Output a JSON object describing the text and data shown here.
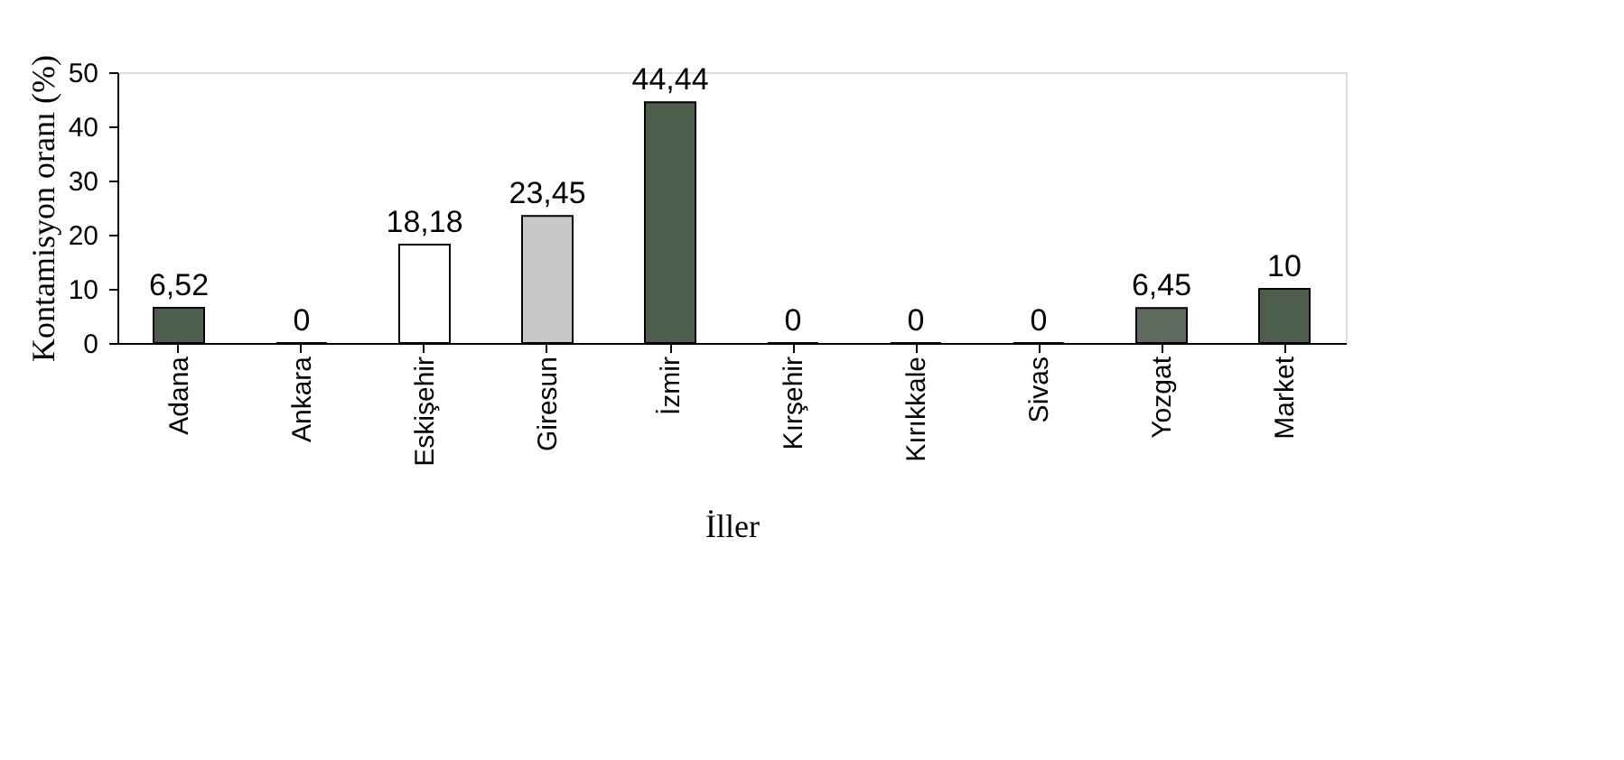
{
  "chart_data": {
    "type": "bar",
    "xlabel": "İller",
    "ylabel": "Kontamisyon oranı (%)",
    "categories": [
      "Adana",
      "Ankara",
      "Eskişehir",
      "Giresun",
      "İzmir",
      "Kırşehir",
      "Kırıkkale",
      "Sivas",
      "Yozgat",
      "Market"
    ],
    "values": [
      6.52,
      0,
      18.18,
      23.45,
      44.44,
      0,
      0,
      0,
      6.45,
      10
    ],
    "colors": [
      "#4d5e4d",
      "#4d5e4d",
      "#ffffff",
      "#c8c8c8",
      "#4d5e4d",
      "#4d5e4d",
      "#4d5e4d",
      "#4d5e4d",
      "#5f6a5f",
      "#4d5e4d"
    ],
    "value_labels": [
      "6,52",
      "0",
      "18,18",
      "23,45",
      "44,44",
      "0",
      "0",
      "0",
      "6,45",
      "10"
    ],
    "ylim": [
      0,
      50
    ],
    "yticks": [
      0,
      10,
      20,
      30,
      40,
      50
    ],
    "grid": false
  }
}
